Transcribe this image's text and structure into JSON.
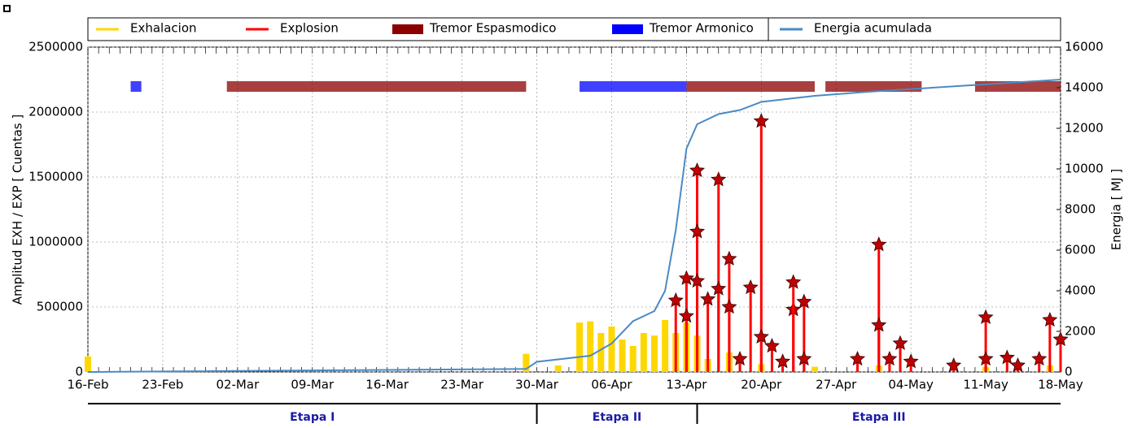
{
  "chart_data": {
    "type": "combo",
    "xlim": [
      "16-Feb",
      "18-May"
    ],
    "xticks": [
      "16-Feb",
      "23-Feb",
      "02-Mar",
      "09-Mar",
      "16-Mar",
      "23-Mar",
      "30-Mar",
      "06-Apr",
      "13-Apr",
      "20-Apr",
      "27-Apr",
      "04-May",
      "11-May",
      "18-May"
    ],
    "ylabel": "Amplitud EXH / EXP [ Cuentas ]",
    "ylim": [
      0,
      2500000
    ],
    "yticks": [
      0,
      500000,
      1000000,
      1500000,
      2000000,
      2500000
    ],
    "y2label": "Energia [ MJ ]",
    "y2lim": [
      0,
      16000
    ],
    "y2ticks": [
      0,
      2000,
      4000,
      6000,
      8000,
      10000,
      12000,
      14000,
      16000
    ],
    "grid": true,
    "series": [
      {
        "name": "Exhalacion",
        "type": "bar",
        "color": "#ffd700",
        "x": [
          "16-Feb",
          "29-Mar",
          "01-Apr",
          "03-Apr",
          "04-Apr",
          "05-Apr",
          "06-Apr",
          "07-Apr",
          "08-Apr",
          "09-Apr",
          "10-Apr",
          "11-Apr",
          "12-Apr",
          "13-Apr",
          "14-Apr",
          "15-Apr",
          "17-Apr",
          "20-Apr",
          "25-Apr",
          "01-May",
          "11-May",
          "17-May"
        ],
        "values": [
          120000,
          140000,
          50000,
          380000,
          390000,
          300000,
          350000,
          250000,
          200000,
          300000,
          280000,
          400000,
          300000,
          380000,
          280000,
          100000,
          150000,
          60000,
          40000,
          50000,
          40000,
          50000
        ]
      },
      {
        "name": "Explosion",
        "type": "stem",
        "color": "#ff0000",
        "x": [
          "12-Apr",
          "13-Apr",
          "13-Apr",
          "14-Apr",
          "14-Apr",
          "14-Apr",
          "15-Apr",
          "16-Apr",
          "16-Apr",
          "17-Apr",
          "17-Apr",
          "18-Apr",
          "19-Apr",
          "20-Apr",
          "20-Apr",
          "21-Apr",
          "22-Apr",
          "23-Apr",
          "23-Apr",
          "24-Apr",
          "24-Apr",
          "29-Apr",
          "01-May",
          "01-May",
          "02-May",
          "03-May",
          "04-May",
          "08-May",
          "11-May",
          "11-May",
          "13-May",
          "14-May",
          "16-May",
          "17-May",
          "18-May"
        ],
        "values": [
          550000,
          720000,
          430000,
          1550000,
          1080000,
          700000,
          560000,
          1480000,
          640000,
          870000,
          500000,
          100000,
          650000,
          1930000,
          270000,
          200000,
          80000,
          480000,
          690000,
          540000,
          100000,
          100000,
          980000,
          360000,
          100000,
          220000,
          80000,
          50000,
          420000,
          100000,
          110000,
          50000,
          100000,
          400000,
          250000
        ]
      },
      {
        "name": "Tremor Espasmodico",
        "type": "band",
        "color": "#8b0000",
        "intervals": [
          [
            "01-Mar",
            "29-Mar"
          ],
          [
            "13-Apr",
            "25-Apr"
          ],
          [
            "26-Apr",
            "05-May"
          ],
          [
            "10-May",
            "18-May"
          ]
        ]
      },
      {
        "name": "Tremor Armonico",
        "type": "band",
        "color": "#0000ff",
        "intervals": [
          [
            "20-Feb",
            "21-Feb"
          ],
          [
            "03-Apr",
            "13-Apr"
          ]
        ]
      },
      {
        "name": "Energia acumulada",
        "type": "line",
        "color": "#4a8ac4",
        "axis": "y2",
        "x": [
          "16-Feb",
          "29-Mar",
          "30-Mar",
          "04-Apr",
          "06-Apr",
          "08-Apr",
          "10-Apr",
          "11-Apr",
          "12-Apr",
          "13-Apr",
          "14-Apr",
          "16-Apr",
          "18-Apr",
          "20-Apr",
          "25-Apr",
          "30-Apr",
          "18-May"
        ],
        "values": [
          0,
          150,
          500,
          800,
          1400,
          2500,
          3000,
          4000,
          7000,
          11000,
          12200,
          12700,
          12900,
          13300,
          13600,
          13800,
          14400
        ]
      }
    ],
    "stages": [
      {
        "label": "Etapa I",
        "start": "16-Feb",
        "end": "30-Mar"
      },
      {
        "label": "Etapa II",
        "start": "30-Mar",
        "end": "14-Apr"
      },
      {
        "label": "Etapa III",
        "start": "14-Apr",
        "end": "18-May"
      }
    ]
  }
}
